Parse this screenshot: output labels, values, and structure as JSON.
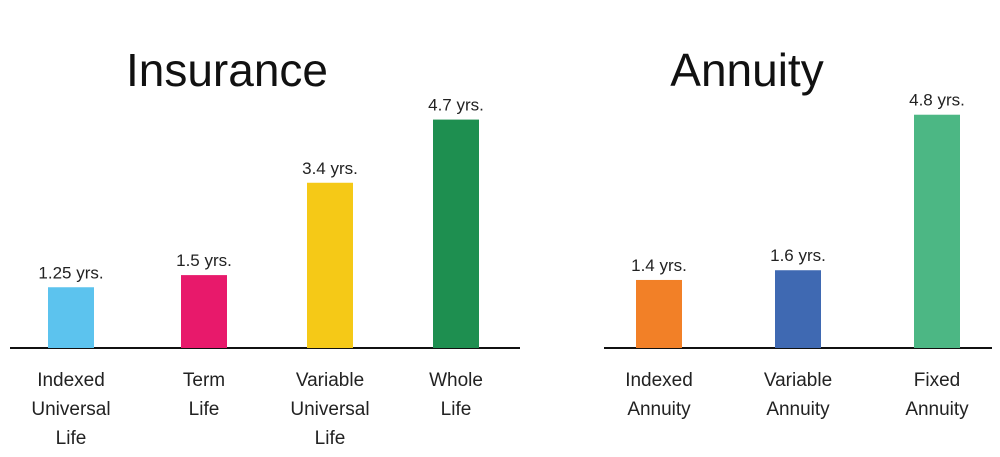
{
  "chart_data": [
    {
      "type": "bar",
      "title": "Insurance",
      "categories": [
        "Indexed Universal Life",
        "Term Life",
        "Variable Universal Life",
        "Whole Life"
      ],
      "values": [
        1.25,
        1.5,
        3.4,
        4.7
      ],
      "data_labels": [
        "1.25 yrs.",
        "1.5 yrs.",
        "3.4 yrs.",
        "4.7 yrs."
      ],
      "colors": [
        "#5cc3ee",
        "#e8196b",
        "#f5c917",
        "#1e8f50"
      ],
      "xlabel": "",
      "ylabel": "",
      "grid": false
    },
    {
      "type": "bar",
      "title": "Annuity",
      "categories": [
        "Indexed Annuity",
        "Variable Annuity",
        "Fixed Annuity"
      ],
      "values": [
        1.4,
        1.6,
        4.8
      ],
      "data_labels": [
        "1.4 yrs.",
        "1.6 yrs.",
        "4.8 yrs."
      ],
      "colors": [
        "#f28027",
        "#3f69b2",
        "#4cb784"
      ],
      "xlabel": "",
      "ylabel": "",
      "grid": false
    }
  ]
}
